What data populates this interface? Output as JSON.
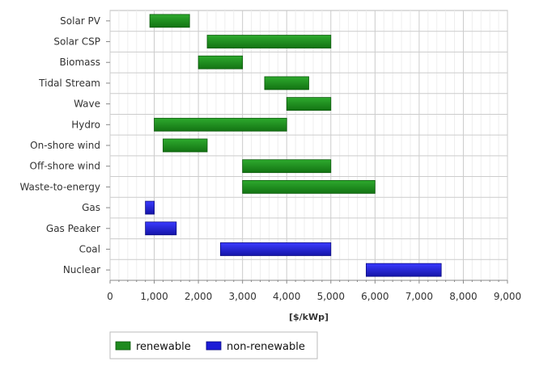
{
  "chart_data": {
    "type": "bar",
    "orientation": "horizontal",
    "style": "floating-range",
    "categories": [
      "Solar PV",
      "Solar CSP",
      "Biomass",
      "Tidal Stream",
      "Wave",
      "Hydro",
      "On-shore wind",
      "Off-shore wind",
      "Waste-to-energy",
      "Gas",
      "Gas Peaker",
      "Coal",
      "Nuclear"
    ],
    "ranges": [
      {
        "category": "Solar PV",
        "low": 900,
        "high": 1800,
        "series": "renewable"
      },
      {
        "category": "Solar CSP",
        "low": 2200,
        "high": 5000,
        "series": "renewable"
      },
      {
        "category": "Biomass",
        "low": 2000,
        "high": 3000,
        "series": "renewable"
      },
      {
        "category": "Tidal Stream",
        "low": 3500,
        "high": 4500,
        "series": "renewable"
      },
      {
        "category": "Wave",
        "low": 4000,
        "high": 5000,
        "series": "renewable"
      },
      {
        "category": "Hydro",
        "low": 1000,
        "high": 4000,
        "series": "renewable"
      },
      {
        "category": "On-shore wind",
        "low": 1200,
        "high": 2200,
        "series": "renewable"
      },
      {
        "category": "Off-shore wind",
        "low": 3000,
        "high": 5000,
        "series": "renewable"
      },
      {
        "category": "Waste-to-energy",
        "low": 3000,
        "high": 6000,
        "series": "renewable"
      },
      {
        "category": "Gas",
        "low": 800,
        "high": 1000,
        "series": "non-renewable"
      },
      {
        "category": "Gas Peaker",
        "low": 800,
        "high": 1500,
        "series": "non-renewable"
      },
      {
        "category": "Coal",
        "low": 2500,
        "high": 5000,
        "series": "non-renewable"
      },
      {
        "category": "Nuclear",
        "low": 5800,
        "high": 7500,
        "series": "non-renewable"
      }
    ],
    "series": [
      {
        "name": "renewable",
        "color": "#1f8a1f"
      },
      {
        "name": "non-renewable",
        "color": "#1c1cd6"
      }
    ],
    "xlabel": "[$/kWp]",
    "xlim": [
      0,
      9000
    ],
    "xticks": [
      0,
      1000,
      2000,
      3000,
      4000,
      5000,
      6000,
      7000,
      8000,
      9000
    ],
    "xtick_labels": [
      "0",
      "1,000",
      "2,000",
      "3,000",
      "4,000",
      "5,000",
      "6,000",
      "7,000",
      "8,000",
      "9,000"
    ],
    "grid": true,
    "legend": "bottom-left"
  }
}
